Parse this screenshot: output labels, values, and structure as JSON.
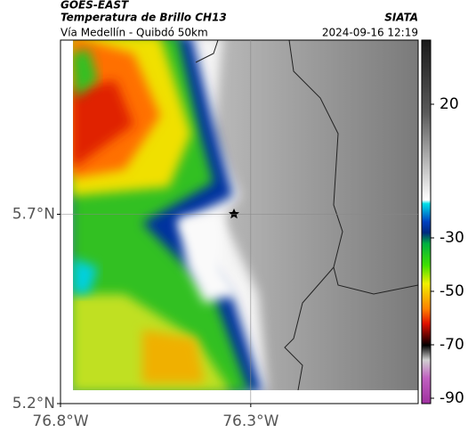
{
  "header": {
    "satellite": "GOES-EAST",
    "product": "Temperatura de Brillo CH13",
    "agency": "SIATA",
    "route": "Vía Medellín - Quibdó 50km",
    "timestamp": "2024-09-16 12:19"
  },
  "map": {
    "xlim": [
      -76.8,
      -75.86
    ],
    "ylim": [
      5.2,
      6.16
    ],
    "xticks": [
      {
        "value": -76.8,
        "label": "76.8°W"
      },
      {
        "value": -76.3,
        "label": "76.3°W"
      }
    ],
    "yticks": [
      {
        "value": 5.2,
        "label": "5.2°N"
      },
      {
        "value": 5.7,
        "label": "5.7°N"
      }
    ],
    "grid": true
  },
  "colorbar": {
    "lim": [
      -92,
      44
    ],
    "ticks": [
      20,
      -30,
      -50,
      -70,
      -90
    ]
  }
}
